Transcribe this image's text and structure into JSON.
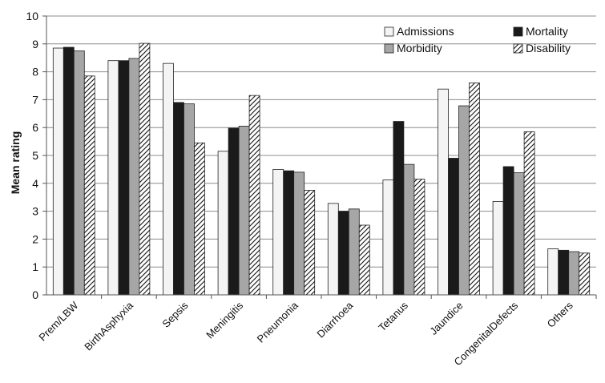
{
  "chart_data": {
    "type": "bar",
    "title": "",
    "xlabel": "",
    "ylabel": "Mean rating",
    "ylim": [
      0,
      10
    ],
    "yticks": [
      0,
      1,
      2,
      3,
      4,
      5,
      6,
      7,
      8,
      9,
      10
    ],
    "grid": "horizontal",
    "legend_position": "top-right",
    "categories": [
      "Prem/LBW",
      "BirthAsphyxia",
      "Sepsis",
      "Meningitis",
      "Pneumonia",
      "Diarrhoea",
      "Tetanus",
      "Jaundice",
      "CongenitalDefects",
      "Others"
    ],
    "series": [
      {
        "name": "Admissions",
        "color": "#f4f4f4",
        "pattern": "solid",
        "values": [
          8.85,
          8.4,
          8.3,
          5.15,
          4.5,
          3.28,
          4.12,
          7.38,
          3.35,
          1.65
        ]
      },
      {
        "name": "Mortality",
        "color": "#1a1a1a",
        "pattern": "solid",
        "values": [
          8.88,
          8.4,
          6.9,
          5.98,
          4.45,
          3.0,
          6.22,
          4.9,
          4.6,
          1.6
        ]
      },
      {
        "name": "Morbidity",
        "color": "#a6a6a6",
        "pattern": "solid",
        "values": [
          8.75,
          8.48,
          6.85,
          6.05,
          4.4,
          3.08,
          4.68,
          6.78,
          4.38,
          1.55
        ]
      },
      {
        "name": "Disability",
        "color": "#ffffff",
        "pattern": "diagonal-hatch",
        "values": [
          7.85,
          9.02,
          5.45,
          7.15,
          3.75,
          2.5,
          4.15,
          7.6,
          5.85,
          1.5
        ]
      }
    ]
  }
}
